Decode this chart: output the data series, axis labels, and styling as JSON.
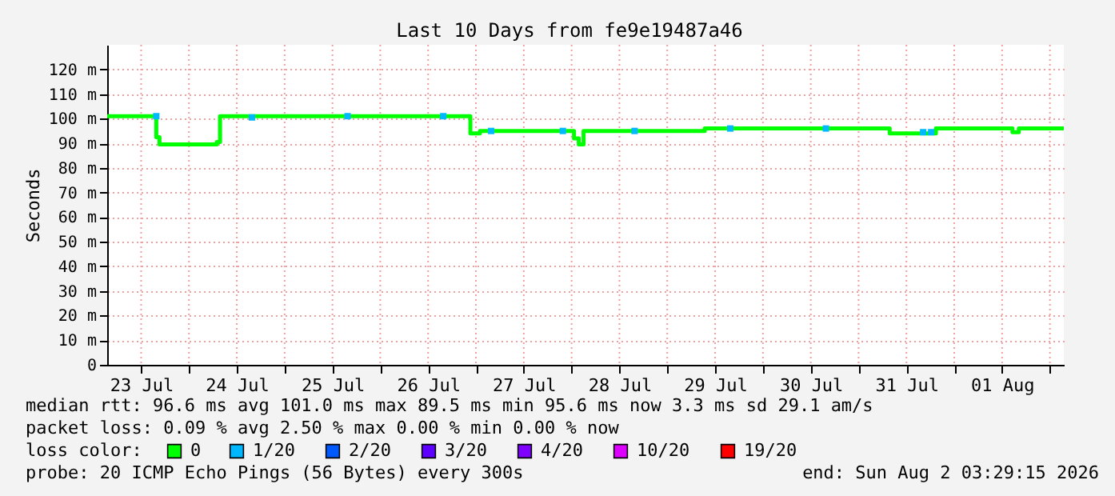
{
  "chart_data": {
    "type": "step",
    "title": "Last 10 Days from fe9e19487a46",
    "ylabel": "Seconds",
    "legend_title": "loss color:",
    "legend": "bottom",
    "grid": true,
    "xlim": [
      "2026-07-23T03:29",
      "2026-08-02T03:29"
    ],
    "xticks": [
      {
        "value": "2026-07-23T12:00",
        "label": "23 Jul"
      },
      {
        "value": "2026-07-24T00:00",
        "label": null
      },
      {
        "value": "2026-07-24T12:00",
        "label": "24 Jul"
      },
      {
        "value": "2026-07-25T00:00",
        "label": null
      },
      {
        "value": "2026-07-25T12:00",
        "label": "25 Jul"
      },
      {
        "value": "2026-07-26T00:00",
        "label": null
      },
      {
        "value": "2026-07-26T12:00",
        "label": "26 Jul"
      },
      {
        "value": "2026-07-27T00:00",
        "label": null
      },
      {
        "value": "2026-07-27T12:00",
        "label": "27 Jul"
      },
      {
        "value": "2026-07-28T00:00",
        "label": null
      },
      {
        "value": "2026-07-28T12:00",
        "label": "28 Jul"
      },
      {
        "value": "2026-07-29T00:00",
        "label": null
      },
      {
        "value": "2026-07-29T12:00",
        "label": "29 Jul"
      },
      {
        "value": "2026-07-30T00:00",
        "label": null
      },
      {
        "value": "2026-07-30T12:00",
        "label": "30 Jul"
      },
      {
        "value": "2026-07-31T00:00",
        "label": null
      },
      {
        "value": "2026-07-31T12:00",
        "label": "31 Jul"
      },
      {
        "value": "2026-08-01T00:00",
        "label": null
      },
      {
        "value": "2026-08-01T12:00",
        "label": "01 Aug"
      },
      {
        "value": "2026-08-02T00:00",
        "label": null
      }
    ],
    "ylim": [
      0,
      130
    ],
    "yticks": [
      0,
      {
        "value": 10,
        "label": "10 m"
      },
      {
        "value": 20,
        "label": "20 m"
      },
      {
        "value": 30,
        "label": "30 m"
      },
      {
        "value": 40,
        "label": "40 m"
      },
      {
        "value": 50,
        "label": "50 m"
      },
      {
        "value": 60,
        "label": "60 m"
      },
      {
        "value": 70,
        "label": "70 m"
      },
      {
        "value": 80,
        "label": "80 m"
      },
      {
        "value": 90,
        "label": "90 m"
      },
      {
        "value": 100,
        "label": "100 m"
      },
      {
        "value": 110,
        "label": "110 m"
      },
      {
        "value": 120,
        "label": "120 m"
      }
    ],
    "series": [
      {
        "name": "0",
        "color": "#00ff00",
        "x": [
          "2026-07-23T03:29",
          "2026-07-23T15:48",
          "2026-07-23T16:36",
          "2026-07-24T07:00",
          "2026-07-24T07:48",
          "2026-07-26T22:36",
          "2026-07-27T01:00",
          "2026-07-28T00:36",
          "2026-07-28T01:48",
          "2026-07-28T03:00",
          "2026-07-29T09:24",
          "2026-07-31T07:48",
          "2026-07-31T19:24",
          "2026-08-01T14:36",
          "2026-08-01T16:12",
          "2026-08-02T03:29"
        ],
        "values": [
          101,
          92.5,
          89.5,
          90.5,
          101,
          94,
          95,
          92,
          89.5,
          95,
          96,
          94,
          96,
          94.5,
          96,
          96
        ]
      },
      {
        "name": "1/20",
        "color": "#00b8ff",
        "type": "scatter",
        "marker": "square",
        "x": [
          "2026-07-23T15:48",
          "2026-07-24T15:48",
          "2026-07-25T15:48",
          "2026-07-26T15:48",
          "2026-07-27T03:48",
          "2026-07-27T21:48",
          "2026-07-28T15:48",
          "2026-07-29T15:48",
          "2026-07-30T15:48",
          "2026-07-31T16:12",
          "2026-07-31T18:12"
        ],
        "values": [
          101,
          100.5,
          101,
          101,
          95,
          95,
          95,
          96,
          96,
          94.5,
          94.5
        ]
      },
      {
        "name": "2/20",
        "color": "#0059ff",
        "type": "scatter",
        "marker": "square"
      },
      {
        "name": "3/20",
        "color": "#5e00ff",
        "type": "scatter",
        "marker": "square"
      },
      {
        "name": "4/20",
        "color": "#7e00ff",
        "type": "scatter",
        "marker": "square"
      },
      {
        "name": "10/20",
        "color": "#dd00ff",
        "type": "scatter",
        "marker": "square"
      },
      {
        "name": "19/20",
        "color": "#ff0000",
        "type": "scatter",
        "marker": "square"
      }
    ],
    "annotations": [
      "median rtt:  96.6 ms avg  101.0 ms max  89.5 ms min  95.6 ms now  3.3 ms sd  29.1   am/s",
      "packet loss: 0.09 % avg  2.50 % max  0.00 % min  0.00 % now",
      "probe:       20 ICMP Echo Pings (56 Bytes) every 300s",
      "end: Sun Aug  2 03:29:15 2026"
    ]
  }
}
